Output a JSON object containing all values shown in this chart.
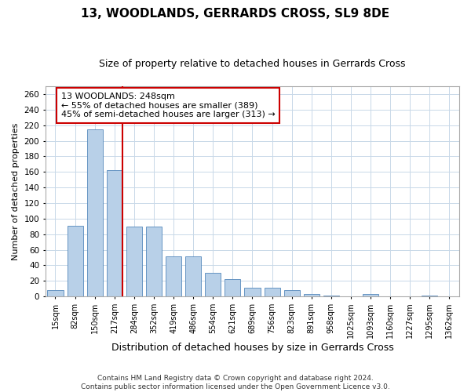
{
  "title": "13, WOODLANDS, GERRARDS CROSS, SL9 8DE",
  "subtitle": "Size of property relative to detached houses in Gerrards Cross",
  "xlabel": "Distribution of detached houses by size in Gerrards Cross",
  "ylabel": "Number of detached properties",
  "categories": [
    "15sqm",
    "82sqm",
    "150sqm",
    "217sqm",
    "284sqm",
    "352sqm",
    "419sqm",
    "486sqm",
    "554sqm",
    "621sqm",
    "689sqm",
    "756sqm",
    "823sqm",
    "891sqm",
    "958sqm",
    "1025sqm",
    "1093sqm",
    "1160sqm",
    "1227sqm",
    "1295sqm",
    "1362sqm"
  ],
  "values": [
    8,
    91,
    215,
    162,
    90,
    90,
    52,
    52,
    30,
    22,
    11,
    11,
    8,
    3,
    1,
    0,
    3,
    0,
    0,
    1,
    0
  ],
  "bar_color": "#b8d0e8",
  "bar_edge_color": "#5588bb",
  "vline_color": "#cc0000",
  "annotation_line1": "13 WOODLANDS: 248sqm",
  "annotation_line2": "← 55% of detached houses are smaller (389)",
  "annotation_line3": "45% of semi-detached houses are larger (313) →",
  "ylim": [
    0,
    270
  ],
  "yticks": [
    0,
    20,
    40,
    60,
    80,
    100,
    120,
    140,
    160,
    180,
    200,
    220,
    240,
    260
  ],
  "footer": "Contains HM Land Registry data © Crown copyright and database right 2024.\nContains public sector information licensed under the Open Government Licence v3.0.",
  "background_color": "#ffffff",
  "grid_color": "#c8d8e8",
  "title_fontsize": 11,
  "subtitle_fontsize": 9,
  "xlabel_fontsize": 9,
  "ylabel_fontsize": 8,
  "tick_fontsize": 7,
  "footer_fontsize": 6.5,
  "annot_fontsize": 8
}
